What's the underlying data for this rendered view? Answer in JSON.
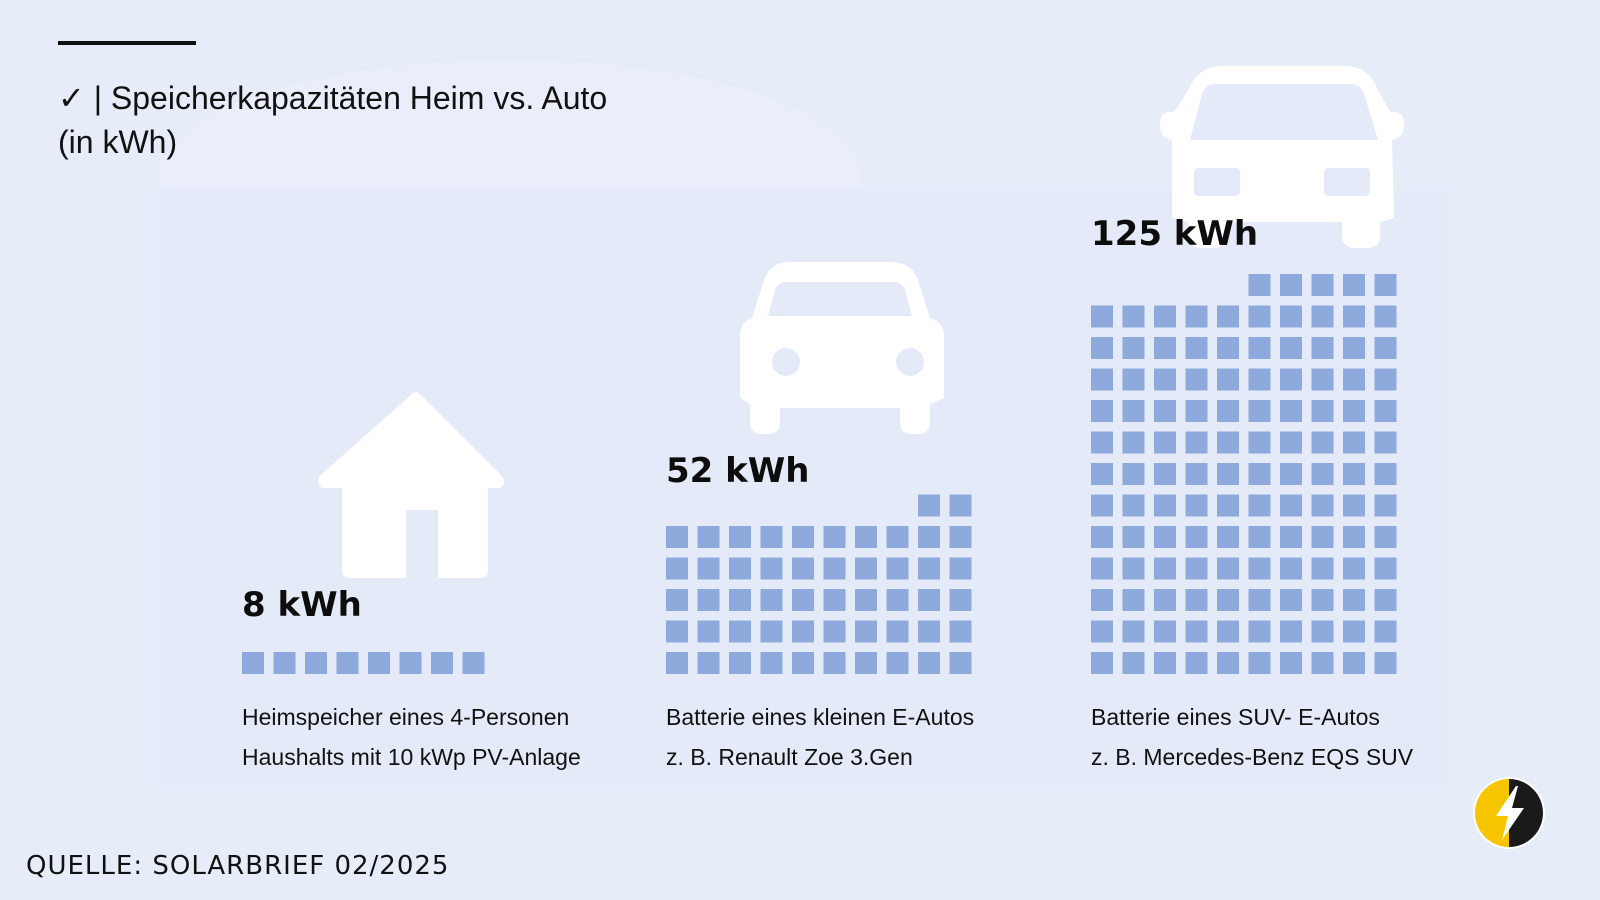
{
  "header": {
    "check_mark": "✓",
    "title_line1": "| Speicherkapazitäten Heim vs. Auto",
    "title_line2": "(in kWh)"
  },
  "chart_data": {
    "type": "pictogram",
    "unit": "kWh",
    "square_value": 1,
    "columns_per_block": 10,
    "colors": {
      "square": "#8ea9dc",
      "icon": "#ffffff",
      "background": "#e6ecf8"
    },
    "series": [
      {
        "value": 8,
        "value_label": "8 kWh",
        "icon": "house-icon",
        "caption_lines": [
          "Heimspeicher eines 4-Personen",
          "Haushalts mit 10 kWp PV-Anlage"
        ]
      },
      {
        "value": 52,
        "value_label": "52 kWh",
        "icon": "car-icon",
        "caption_lines": [
          "Batterie eines kleinen E-Autos",
          "z. B. Renault Zoe 3.Gen"
        ]
      },
      {
        "value": 125,
        "value_label": "125 kWh",
        "icon": "car-icon",
        "caption_lines": [
          "Batterie eines SUV- E-Autos",
          "z. B. Mercedes-Benz EQS SUV"
        ]
      }
    ]
  },
  "footer": {
    "source": "QUELLE: SOLARBRIEF 02/2025",
    "logo": "lightning-logo-icon",
    "logo_colors": {
      "left": "#f6c500",
      "right": "#1a1a1a",
      "bolt": "#ffffff"
    }
  }
}
